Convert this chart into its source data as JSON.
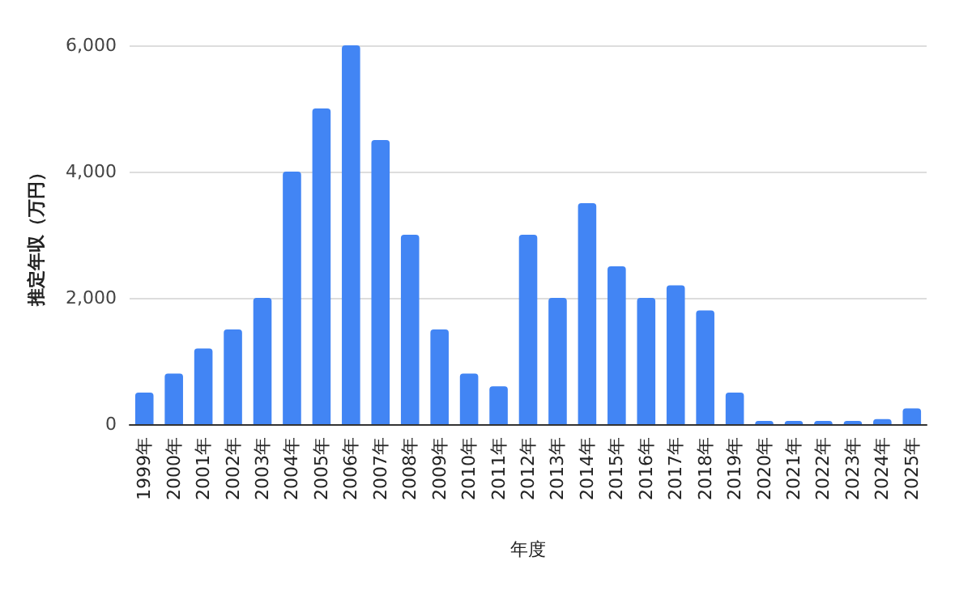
{
  "chart_data": {
    "type": "bar",
    "xlabel": "年度",
    "ylabel": "推定年収（万円）",
    "categories": [
      "1999年",
      "2000年",
      "2001年",
      "2002年",
      "2003年",
      "2004年",
      "2005年",
      "2006年",
      "2007年",
      "2008年",
      "2009年",
      "2010年",
      "2011年",
      "2012年",
      "2013年",
      "2014年",
      "2015年",
      "2016年",
      "2017年",
      "2018年",
      "2019年",
      "2020年",
      "2021年",
      "2022年",
      "2023年",
      "2024年",
      "2025年"
    ],
    "values": [
      500,
      800,
      1200,
      1500,
      2000,
      4000,
      5000,
      6000,
      4500,
      3000,
      1500,
      800,
      600,
      3000,
      2000,
      3500,
      2500,
      2000,
      2200,
      1800,
      500,
      50,
      50,
      50,
      50,
      80,
      250
    ],
    "color": "#4285f4",
    "ylim": [
      0,
      6000
    ],
    "yticks": [
      0,
      {
        "value": 2000,
        "label": "2,000"
      },
      {
        "value": 4000,
        "label": "4,000"
      },
      {
        "value": 6000,
        "label": "6,000"
      }
    ],
    "grid": "y"
  }
}
